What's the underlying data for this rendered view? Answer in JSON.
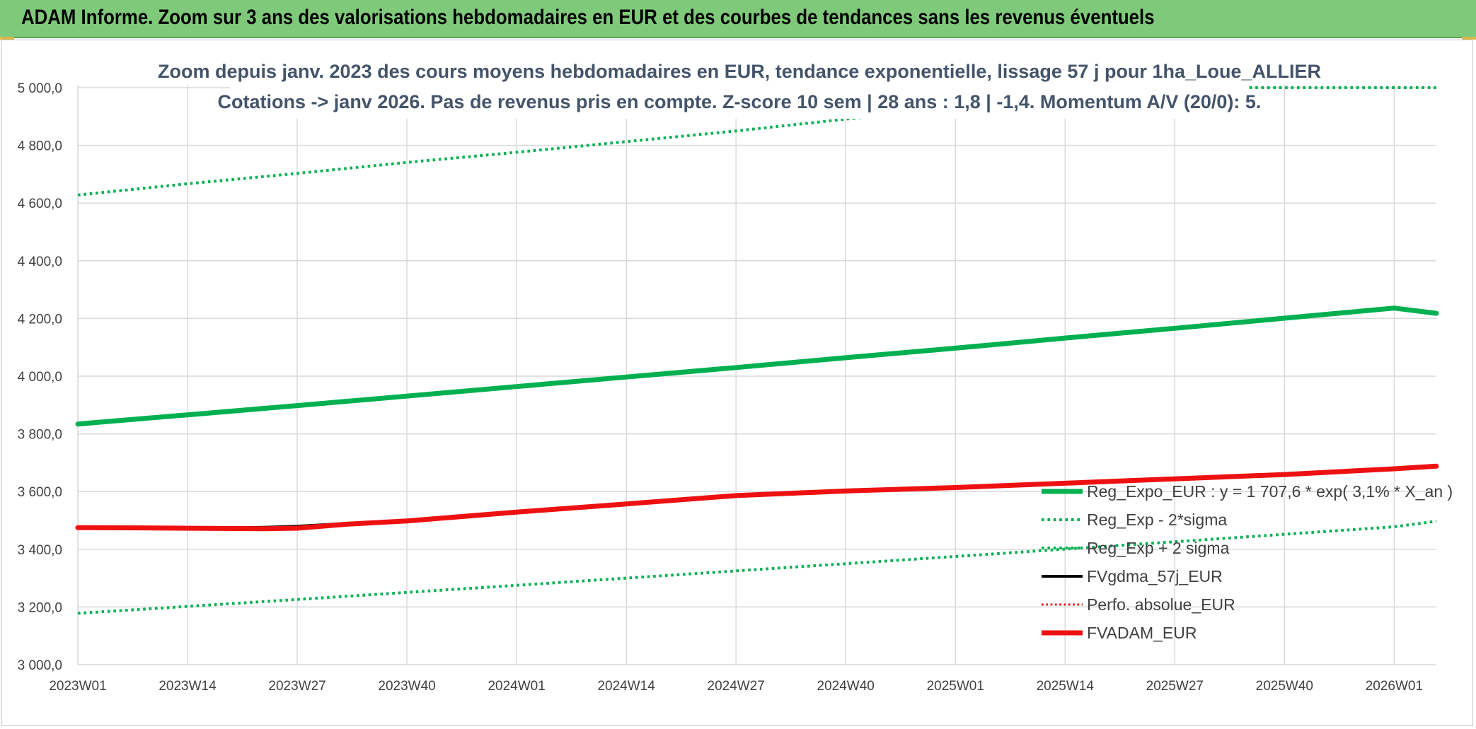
{
  "banner": {
    "title": "ADAM Informe. Zoom sur 3 ans des valorisations hebdomadaires en EUR et des courbes de tendances sans les revenus éventuels"
  },
  "colors": {
    "banner_bg": "#7fca7a",
    "green": "#00b050",
    "black": "#000000",
    "red": "#ee1111",
    "grid": "#d9d9d9"
  },
  "chart_data": {
    "type": "line",
    "title": "Zoom depuis janv. 2023 des cours moyens hebdomadaires en EUR, tendance exponentielle, lissage 57 j pour 1ha_Loue_ALLIER",
    "subtitle": "Cotations -> janv 2026. Pas de revenus pris en compte. Z-score 10 sem | 28 ans : 1,8 | -1,4. Momentum A/V (20/0): 5.",
    "xlabel": "",
    "ylabel": "",
    "x_ticks": [
      "2023W01",
      "2023W14",
      "2023W27",
      "2023W40",
      "2024W01",
      "2024W14",
      "2024W27",
      "2024W40",
      "2025W01",
      "2025W14",
      "2025W27",
      "2025W40",
      "2026W01"
    ],
    "x_range_weeks": [
      0,
      161
    ],
    "ylim": [
      3000,
      5000
    ],
    "y_ticks": [
      "3 000,0",
      "3 200,0",
      "3 400,0",
      "3 600,0",
      "3 800,0",
      "4 000,0",
      "4 200,0",
      "4 400,0",
      "4 600,0",
      "4 800,0",
      "5 000,0"
    ],
    "grid": true,
    "legend_position": "bottom-right",
    "series": [
      {
        "name": "Reg_Expo_EUR : y = 1 707,6 * exp( 3,1% *  X_an )",
        "color": "#00b050",
        "style": "solid",
        "width": 7,
        "x": [
          0,
          13,
          26,
          39,
          52,
          65,
          78,
          91,
          104,
          117,
          130,
          143,
          156,
          161
        ],
        "y": [
          3834,
          3866,
          3898,
          3931,
          3964,
          3997,
          4030,
          4064,
          4097,
          4132,
          4166,
          4201,
          4236,
          4218
        ]
      },
      {
        "name": "Reg_Exp - 2*sigma",
        "color": "#00b050",
        "style": "dotted",
        "width": 4,
        "x": [
          0,
          26,
          52,
          78,
          104,
          130,
          156,
          161
        ],
        "y": [
          3178,
          3226,
          3275,
          3325,
          3375,
          3426,
          3478,
          3497
        ]
      },
      {
        "name": "Reg_Exp + 2 sigma",
        "color": "#00b050",
        "style": "dotted",
        "width": 4,
        "x": [
          0,
          13,
          26,
          39,
          52,
          65,
          78,
          91,
          104,
          117,
          130,
          143,
          156,
          161
        ],
        "y": [
          4628,
          4667,
          4703,
          4741,
          4776,
          4813,
          4850,
          4891,
          4930,
          4968,
          5000,
          5000,
          5000,
          5000
        ]
      },
      {
        "name": "FVgdma_57j_EUR",
        "color": "#000000",
        "style": "solid",
        "width": 4,
        "x": [
          0,
          8,
          17,
          22,
          26,
          32,
          39,
          52,
          65,
          78,
          91,
          104,
          117,
          130,
          143,
          156,
          161
        ],
        "y": [
          3475,
          3475,
          3474,
          3476,
          3480,
          3490,
          3500,
          3530,
          3558,
          3587,
          3603,
          3615,
          3630,
          3645,
          3660,
          3680,
          3690
        ]
      },
      {
        "name": "Perfo. absolue_EUR",
        "color": "#ee1111",
        "style": "dotted",
        "width": 3,
        "x": [
          0,
          8,
          17,
          22,
          26,
          32,
          39,
          52,
          65,
          78,
          91,
          104,
          117,
          130,
          143,
          156,
          161
        ],
        "y": [
          3475,
          3474,
          3472,
          3471,
          3473,
          3487,
          3498,
          3529,
          3557,
          3586,
          3602,
          3614,
          3629,
          3644,
          3659,
          3679,
          3688
        ]
      },
      {
        "name": "FVADAM_EUR",
        "color": "#ee1111",
        "style": "solid",
        "width": 7,
        "x": [
          0,
          8,
          17,
          22,
          26,
          32,
          39,
          52,
          65,
          78,
          91,
          104,
          117,
          130,
          143,
          156,
          161
        ],
        "y": [
          3475,
          3474,
          3472,
          3471,
          3473,
          3487,
          3498,
          3529,
          3557,
          3586,
          3602,
          3614,
          3629,
          3644,
          3659,
          3679,
          3688
        ]
      }
    ]
  }
}
